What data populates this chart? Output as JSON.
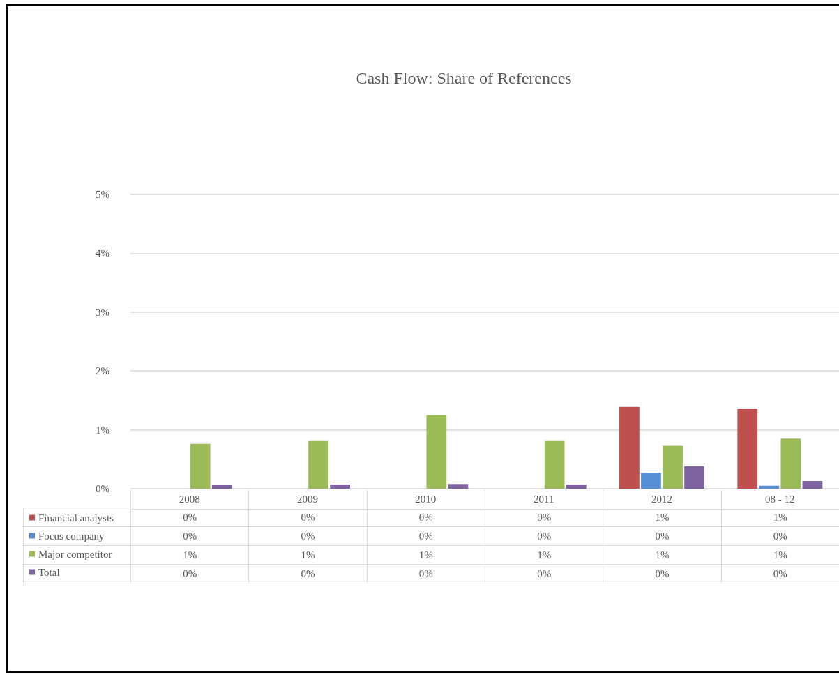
{
  "chart_data": {
    "type": "bar",
    "title": "Cash Flow: Share of References",
    "categories": [
      "2008",
      "2009",
      "2010",
      "2011",
      "2012",
      "08 - 12"
    ],
    "series": [
      {
        "name": "Financial analysts",
        "color": "#c0504d",
        "values": [
          0,
          0,
          0,
          0,
          1.39,
          1.36
        ],
        "value_labels": [
          "0%",
          "0%",
          "0%",
          "0%",
          "1%",
          "1%"
        ]
      },
      {
        "name": "Focus company",
        "color": "#558ed5",
        "values": [
          0,
          0,
          0,
          0,
          0.27,
          0.05
        ],
        "value_labels": [
          "0%",
          "0%",
          "0%",
          "0%",
          "0%",
          "0%"
        ]
      },
      {
        "name": "Major competitor",
        "color": "#9bbb59",
        "values": [
          0.76,
          0.82,
          1.25,
          0.82,
          0.73,
          0.85
        ],
        "value_labels": [
          "1%",
          "1%",
          "1%",
          "1%",
          "1%",
          "1%"
        ]
      },
      {
        "name": "Total",
        "color": "#8064a2",
        "values": [
          0.06,
          0.07,
          0.08,
          0.07,
          0.38,
          0.13
        ],
        "value_labels": [
          "0%",
          "0%",
          "0%",
          "0%",
          "0%",
          "0%"
        ]
      }
    ],
    "ylim": [
      0,
      5
    ],
    "yticks": [
      {
        "value": 0,
        "label": "0%"
      },
      {
        "value": 1,
        "label": "1%"
      },
      {
        "value": 2,
        "label": "2%"
      },
      {
        "value": 3,
        "label": "3%"
      },
      {
        "value": 4,
        "label": "4%"
      },
      {
        "value": 5,
        "label": "5%"
      }
    ],
    "grid": "y",
    "legend": "bottom left"
  }
}
